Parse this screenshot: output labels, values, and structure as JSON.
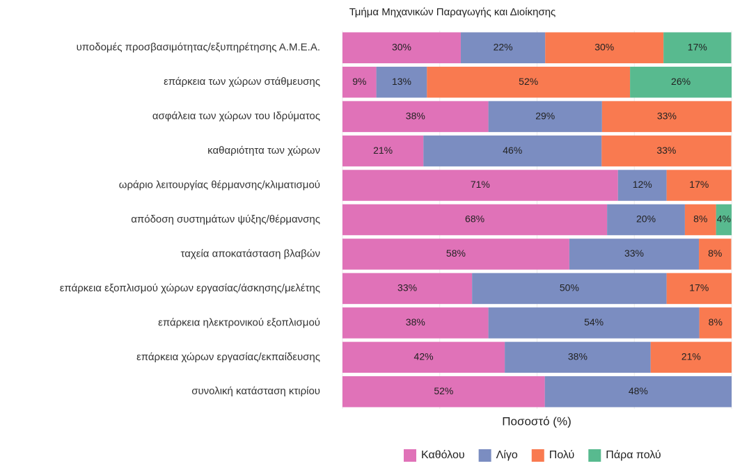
{
  "chart_data": {
    "type": "stacked-bar-horizontal",
    "title": "Τμήμα Μηχανικών Παραγωγής και Διοίκησης",
    "x_label": "Ποσοστό (%)",
    "categories": [
      "υποδομές προσβασιμότητας/εξυπηρέτησης Α.Μ.Ε.Α.",
      "επάρκεια των χώρων στάθμευσης",
      "ασφάλεια των χώρων του Ιδρύματος",
      "καθαριότητα των χώρων",
      "ωράριο λειτουργίας θέρμανσης/κλιματισμού",
      "απόδοση συστημάτων ψύξης/θέρμανσης",
      "ταχεία αποκατάσταση βλαβών",
      "επάρκεια εξοπλισμού χώρων εργασίας/άσκησης/μελέτης",
      "επάρκεια ηλεκτρονικού εξοπλισμού",
      "επάρκεια χώρων εργασίας/εκπαίδευσης",
      "συνολική κατάσταση κτιρίου"
    ],
    "series": [
      {
        "name": "Καθόλου",
        "color": "#e072b8",
        "values": [
          30.4,
          8.7,
          37.5,
          20.8,
          70.8,
          68,
          58.3,
          33.3,
          37.5,
          41.7,
          52
        ],
        "value_labels": [
          "30%",
          "9%",
          "38%",
          "21%",
          "71%",
          "68%",
          "58%",
          "33%",
          "38%",
          "42%",
          "52%"
        ]
      },
      {
        "name": "Λίγο",
        "color": "#7b8dc1",
        "values": [
          21.7,
          13.0,
          29.2,
          45.8,
          12.5,
          20,
          33.3,
          50,
          54.2,
          37.5,
          48
        ],
        "value_labels": [
          "22%",
          "13%",
          "29%",
          "46%",
          "12%",
          "20%",
          "33%",
          "50%",
          "54%",
          "38%",
          "48%"
        ]
      },
      {
        "name": "Πολύ",
        "color": "#f97a50",
        "values": [
          30.4,
          52.2,
          33.3,
          33.3,
          16.7,
          8,
          8.3,
          16.7,
          8.3,
          20.8,
          null
        ],
        "value_labels": [
          "30%",
          "52%",
          "33%",
          "33%",
          "17%",
          "8%",
          "8%",
          "17%",
          "8%",
          "21%",
          null
        ]
      },
      {
        "name": "Πάρα πολύ",
        "color": "#58ba8f",
        "values": [
          17.4,
          26.1,
          null,
          null,
          null,
          4,
          null,
          null,
          null,
          null,
          null
        ],
        "value_labels": [
          "17%",
          "26%",
          null,
          null,
          null,
          "4%",
          null,
          null,
          null,
          null,
          null
        ]
      }
    ],
    "xlim": [
      0,
      100
    ],
    "xticks": [
      0,
      25,
      50,
      75,
      100
    ],
    "grid": true,
    "legend": "bottom"
  }
}
